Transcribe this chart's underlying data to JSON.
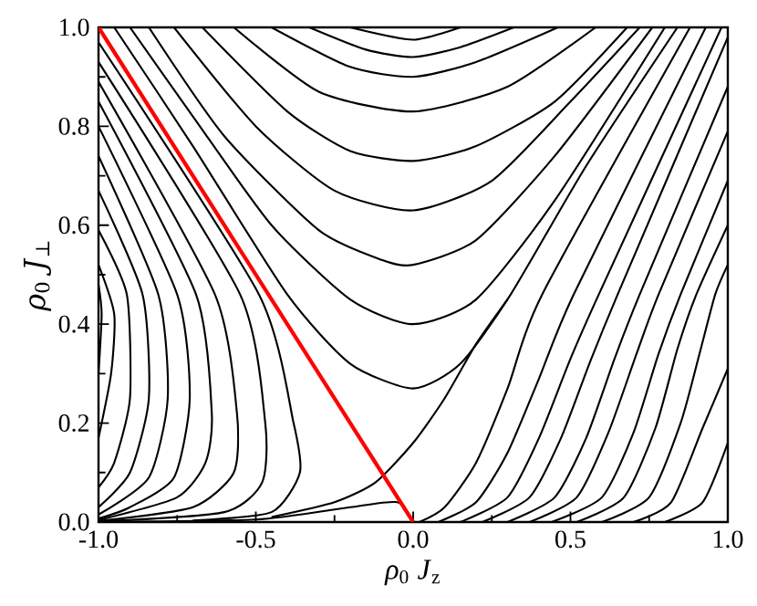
{
  "chart_data": {
    "type": "line",
    "xlabel": "*ρ*$_{0}$ *J*$_{z}$",
    "ylabel": "*ρ*$_{0}$ *J*$_{⊥}$",
    "xlim": [
      -1,
      1
    ],
    "ylim": [
      0,
      1
    ],
    "xticks": [
      {
        "value": -1,
        "label": "-1.0"
      },
      {
        "value": -0.5,
        "label": "-0.5"
      },
      {
        "value": 0,
        "label": "0.0"
      },
      {
        "value": 0.5,
        "label": "0.5"
      },
      {
        "value": 1,
        "label": "1.0"
      }
    ],
    "yticks": [
      {
        "value": 0,
        "label": "0.0"
      },
      {
        "value": 0.2,
        "label": "0.2"
      },
      {
        "value": 0.4,
        "label": "0.4"
      },
      {
        "value": 0.6,
        "label": "0.6"
      },
      {
        "value": 0.8,
        "label": "0.8"
      },
      {
        "value": 1,
        "label": "1.0"
      }
    ],
    "grid": false,
    "marker": "none",
    "line_style": "solid",
    "series": [
      {
        "color": "#000000",
        "x": [
          -0.2,
          0,
          0.15
        ],
        "values": [
          1.0,
          0.975,
          1.0
        ]
      },
      {
        "color": "#000000",
        "x": [
          -0.33,
          -0.15,
          0,
          0.15,
          0.32
        ],
        "values": [
          1.0,
          0.955,
          0.94,
          0.96,
          1.0
        ]
      },
      {
        "color": "#000000",
        "x": [
          -0.45,
          -0.2,
          0,
          0.2,
          0.46
        ],
        "values": [
          1.0,
          0.92,
          0.9,
          0.93,
          1.0
        ]
      },
      {
        "color": "#000000",
        "x": [
          -0.57,
          -0.3,
          0,
          0.3,
          0.58
        ],
        "values": [
          1.0,
          0.87,
          0.83,
          0.88,
          1.0
        ]
      },
      {
        "color": "#000000",
        "x": [
          -0.67,
          -0.4,
          -0.2,
          0,
          0.2,
          0.45,
          0.68
        ],
        "values": [
          1.0,
          0.83,
          0.75,
          0.73,
          0.76,
          0.85,
          1.0
        ]
      },
      {
        "color": "#000000",
        "x": [
          -0.76,
          -0.5,
          -0.25,
          0,
          0.25,
          0.5,
          0.72
        ],
        "values": [
          1.0,
          0.8,
          0.67,
          0.63,
          0.69,
          0.85,
          1.0
        ]
      },
      {
        "color": "#000000",
        "x": [
          -0.84,
          -0.6,
          -0.3,
          -0.1,
          0,
          0.2,
          0.45,
          0.76
        ],
        "values": [
          1.0,
          0.78,
          0.59,
          0.53,
          0.52,
          0.57,
          0.74,
          1.0
        ]
      },
      {
        "color": "#000000",
        "x": [
          -0.9,
          -0.7,
          -0.45,
          -0.2,
          0,
          0.2,
          0.45,
          0.8
        ],
        "values": [
          1.0,
          0.82,
          0.6,
          0.45,
          0.4,
          0.45,
          0.65,
          1.0
        ]
      },
      {
        "color": "#000000",
        "x": [
          -0.95,
          -0.7,
          -0.4,
          -0.2,
          0,
          0.15,
          0.31,
          0.55,
          0.84
        ],
        "values": [
          1.0,
          0.76,
          0.46,
          0.32,
          0.27,
          0.32,
          0.46,
          0.72,
          1.0
        ]
      },
      {
        "color": "#000000",
        "x": [
          -0.45,
          -0.25,
          -0.12,
          0,
          0.1,
          0.2,
          0.3
        ],
        "values": [
          0.01,
          0.04,
          0.08,
          0.16,
          0.25,
          0.36,
          0.45
        ]
      },
      {
        "color": "#000000",
        "x": [
          -1.0,
          -0.5,
          -0.2,
          -0.05,
          0
        ],
        "values": [
          0.0,
          0.005,
          0.03,
          0.04,
          0.0
        ]
      },
      {
        "color": "#000000",
        "x": [
          0.02,
          0.1,
          0.2,
          0.3,
          0.41,
          0.88
        ],
        "values": [
          0.0,
          0.03,
          0.12,
          0.27,
          0.46,
          1.0
        ]
      },
      {
        "color": "#000000",
        "x": [
          0.08,
          0.2,
          0.3,
          0.4,
          0.51,
          0.93
        ],
        "values": [
          0.0,
          0.04,
          0.14,
          0.29,
          0.46,
          1.0
        ]
      },
      {
        "color": "#000000",
        "x": [
          0.15,
          0.3,
          0.4,
          0.5,
          0.59,
          0.98
        ],
        "values": [
          0.0,
          0.05,
          0.17,
          0.33,
          0.46,
          1.0
        ]
      },
      {
        "color": "#000000",
        "x": [
          0.22,
          0.37,
          0.47,
          0.56,
          0.65,
          1.0
        ],
        "values": [
          0.0,
          0.05,
          0.17,
          0.32,
          0.46,
          0.98
        ]
      },
      {
        "color": "#000000",
        "x": [
          0.3,
          0.45,
          0.55,
          0.64,
          0.72,
          1.0
        ],
        "values": [
          0.0,
          0.05,
          0.17,
          0.33,
          0.46,
          0.88
        ]
      },
      {
        "color": "#000000",
        "x": [
          0.37,
          0.52,
          0.62,
          0.71,
          0.78,
          1.0
        ],
        "values": [
          0.0,
          0.05,
          0.18,
          0.34,
          0.46,
          0.79
        ]
      },
      {
        "color": "#000000",
        "x": [
          0.44,
          0.6,
          0.7,
          0.78,
          0.85,
          1.0
        ],
        "values": [
          0.0,
          0.05,
          0.18,
          0.34,
          0.46,
          0.69
        ]
      },
      {
        "color": "#000000",
        "x": [
          0.52,
          0.67,
          0.77,
          0.84,
          0.9,
          1.0
        ],
        "values": [
          0.0,
          0.05,
          0.19,
          0.35,
          0.46,
          0.6
        ]
      },
      {
        "color": "#000000",
        "x": [
          0.6,
          0.75,
          0.85,
          0.91,
          0.96,
          1.0
        ],
        "values": [
          0.0,
          0.05,
          0.2,
          0.34,
          0.46,
          0.52
        ]
      },
      {
        "color": "#000000",
        "x": [
          0.7,
          0.82,
          0.92,
          1.0
        ],
        "values": [
          0.0,
          0.04,
          0.19,
          0.31
        ]
      },
      {
        "color": "#000000",
        "x": [
          0.8,
          0.92,
          1.0
        ],
        "values": [
          0.0,
          0.04,
          0.16
        ]
      },
      {
        "color": "#000000",
        "x": [
          -1.0,
          -0.99,
          -1.0
        ],
        "values": [
          0.48,
          0.42,
          0.3
        ]
      },
      {
        "color": "#000000",
        "x": [
          -1.0,
          -0.95,
          -0.96,
          -1.0
        ],
        "values": [
          0.52,
          0.42,
          0.3,
          0.17
        ]
      },
      {
        "color": "#000000",
        "x": [
          -1.0,
          -0.91,
          -0.9,
          -0.95,
          -1.0
        ],
        "values": [
          0.59,
          0.46,
          0.25,
          0.12,
          0.07
        ]
      },
      {
        "color": "#000000",
        "x": [
          -1.0,
          -0.86,
          -0.84,
          -0.9,
          -1.0
        ],
        "values": [
          0.67,
          0.46,
          0.25,
          0.1,
          0.03
        ]
      },
      {
        "color": "#000000",
        "x": [
          -1.0,
          -0.81,
          -0.78,
          -0.84,
          -1.0
        ],
        "values": [
          0.74,
          0.46,
          0.25,
          0.09,
          0.015
        ]
      },
      {
        "color": "#000000",
        "x": [
          -1.0,
          -0.75,
          -0.71,
          -0.76,
          -0.9,
          -1.0
        ],
        "values": [
          0.8,
          0.46,
          0.25,
          0.09,
          0.03,
          0.007
        ]
      },
      {
        "color": "#000000",
        "x": [
          -1.0,
          -0.69,
          -0.64,
          -0.66,
          -0.75,
          -1.0
        ],
        "values": [
          0.85,
          0.46,
          0.22,
          0.12,
          0.05,
          0.004
        ]
      },
      {
        "color": "#000000",
        "x": [
          -1.0,
          -0.63,
          -0.56,
          -0.57,
          -0.7,
          -1.0
        ],
        "values": [
          0.89,
          0.46,
          0.22,
          0.1,
          0.03,
          0.002
        ]
      },
      {
        "color": "#000000",
        "x": [
          -1.0,
          -0.55,
          -0.47,
          -0.48,
          -0.6,
          -1.0
        ],
        "values": [
          0.93,
          0.46,
          0.2,
          0.08,
          0.02,
          0.001
        ]
      },
      {
        "color": "#000000",
        "x": [
          -1.0,
          -0.49,
          -0.38,
          -0.36,
          -0.45,
          -0.7
        ],
        "values": [
          0.97,
          0.46,
          0.2,
          0.1,
          0.02,
          0.003
        ]
      },
      {
        "color": "#ff0000",
        "x": [
          -1.0,
          0.0
        ],
        "values": [
          1.0,
          0.0
        ]
      }
    ]
  }
}
